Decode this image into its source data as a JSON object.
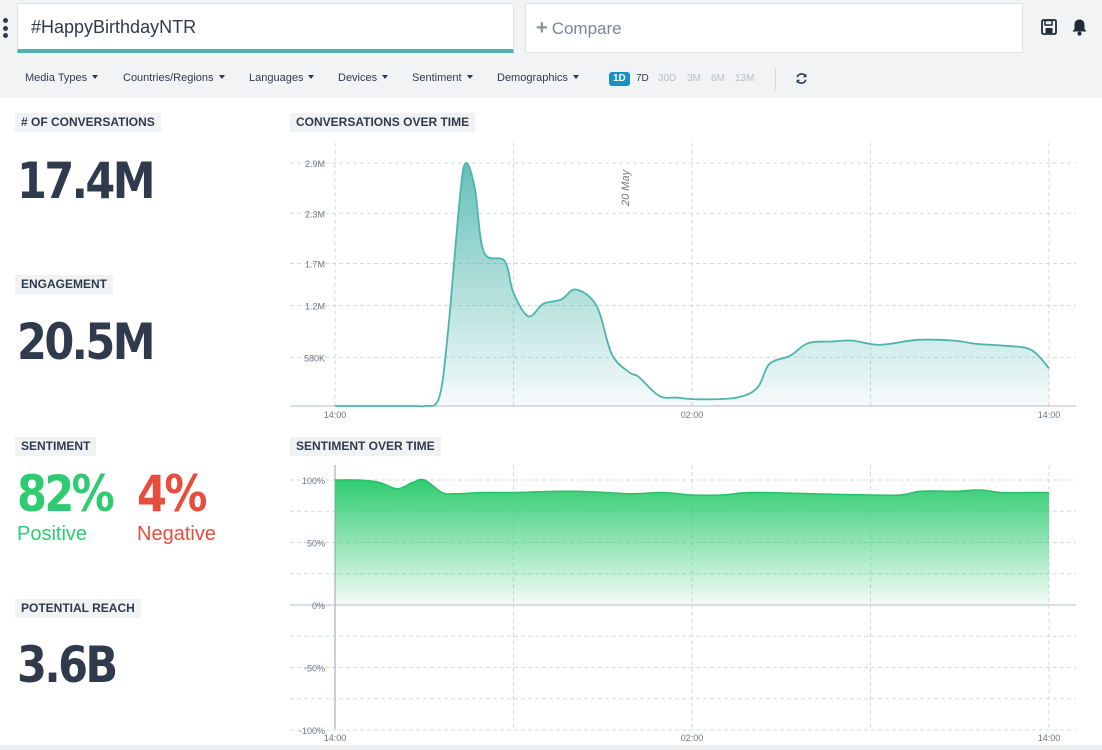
{
  "header": {
    "menu_icon": "kebab-menu-icon",
    "search_value": "#HappyBirthdayNTR",
    "compare_placeholder": "Compare",
    "save_icon": "save-icon",
    "bell_icon": "bell-icon",
    "accent_color": "#4bb5ac"
  },
  "filters": [
    "Media Types",
    "Countries/Regions",
    "Languages",
    "Devices",
    "Sentiment",
    "Demographics"
  ],
  "time_ranges": {
    "options": [
      "1D",
      "7D",
      "30D",
      "3M",
      "6M",
      "13M"
    ],
    "selected": "1D"
  },
  "stats": {
    "conversations": {
      "label": "# OF CONVERSATIONS",
      "value": "17.4M"
    },
    "engagement": {
      "label": "ENGAGEMENT",
      "value": "20.5M"
    },
    "sentiment": {
      "label": "SENTIMENT",
      "positive_value": "82%",
      "positive_label": "Positive",
      "negative_value": "4%",
      "negative_label": "Negative",
      "positive_color": "#2ecc71",
      "negative_color": "#e74c3c"
    },
    "reach": {
      "label": "POTENTIAL REACH",
      "value": "3.6B"
    }
  },
  "chart_data": [
    {
      "type": "area",
      "title": "CONVERSATIONS OVER TIME",
      "annotation": "20 May",
      "x_tick_labels": [
        "14:00",
        "02:00",
        "14:00"
      ],
      "y_tick_labels": [
        "580K",
        "1.2M",
        "1.7M",
        "2.3M",
        "2.9M"
      ],
      "y_ticks": [
        580000,
        1200000,
        1700000,
        2300000,
        2900000
      ],
      "ylim": [
        0,
        2900000
      ],
      "x_range_hours": [
        0,
        24
      ],
      "grid": true,
      "color": "#4bb5ac",
      "series": [
        {
          "x": [
            0,
            2.6,
            3.0,
            3.5,
            3.8,
            4.2,
            4.4,
            4.7,
            5.0,
            5.7,
            6.0,
            6.5,
            7.0,
            7.6,
            8.1,
            8.8,
            9.3,
            9.9,
            10.2,
            10.9,
            11.5,
            12.2,
            13.5,
            14.2,
            14.6,
            15.3,
            15.9,
            16.7,
            17.4,
            18.3,
            19.6,
            20.8,
            21.6,
            22.5,
            23.4,
            24
          ],
          "y": [
            0,
            0,
            0,
            0.1,
            0.9,
            2.5,
            2.9,
            2.6,
            1.84,
            1.73,
            1.35,
            1.07,
            1.22,
            1.27,
            1.39,
            1.19,
            0.62,
            0.4,
            0.35,
            0.12,
            0.1,
            0.08,
            0.1,
            0.22,
            0.5,
            0.6,
            0.75,
            0.77,
            0.78,
            0.73,
            0.79,
            0.78,
            0.74,
            0.72,
            0.67,
            0.45
          ]
        }
      ]
    },
    {
      "type": "area",
      "title": "SENTIMENT OVER TIME",
      "x_tick_labels": [
        "14:00",
        "02:00",
        "14:00"
      ],
      "y_tick_labels": [
        "100%",
        "50%",
        "0%",
        "-50%",
        "-100%"
      ],
      "y_ticks": [
        100,
        50,
        0,
        -50,
        -100
      ],
      "ylim": [
        -100,
        100
      ],
      "x_range_hours": [
        0,
        24
      ],
      "grid": true,
      "color": "#2ecc71",
      "series": [
        {
          "x": [
            0,
            0.8,
            1.5,
            2.1,
            2.6,
            3.0,
            3.6,
            4.0,
            5.0,
            6.0,
            8.0,
            10.0,
            11.0,
            12.0,
            13.0,
            14.0,
            16.0,
            18.0,
            19.0,
            19.7,
            20.8,
            21.7,
            22.4,
            23.4,
            24
          ],
          "y": [
            100,
            100,
            98,
            93,
            98,
            100,
            90,
            89,
            90,
            90,
            91,
            89,
            90,
            88,
            88,
            90,
            89,
            88,
            88,
            91,
            91,
            92,
            90,
            90,
            90
          ]
        }
      ]
    }
  ]
}
